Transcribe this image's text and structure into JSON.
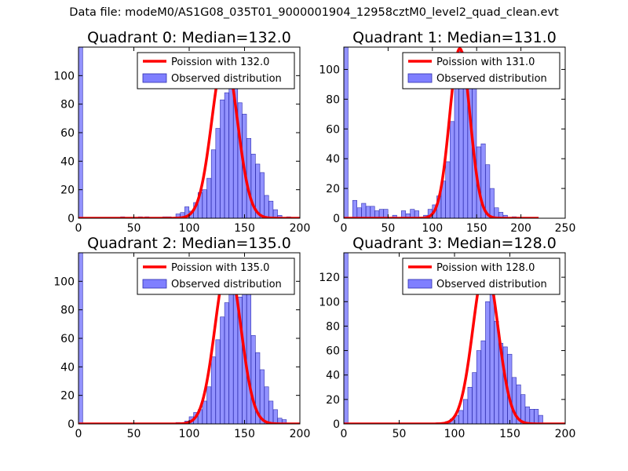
{
  "figure_title": "Data file: modeM0/AS1G08_035T01_9000001904_12958cztM0_level2_quad_clean.evt",
  "colors": {
    "observed_fill": "#7f7fff",
    "observed_edge": "#2f2fb0",
    "poisson_line": "#ff0000",
    "background": "#ffffff"
  },
  "chart_data": [
    {
      "type": "bar",
      "title": "Quadrant 0: Median=132.0",
      "xlim": [
        0,
        200
      ],
      "ylim": [
        0,
        120
      ],
      "xticks": [
        0,
        50,
        100,
        150,
        200
      ],
      "yticks": [
        0,
        20,
        40,
        60,
        80,
        100
      ],
      "legend": {
        "placement": "top-right",
        "labels": [
          "Poission with 132.0",
          "Observed distribution"
        ]
      },
      "bar_width": 3.8,
      "bars": [
        [
          0,
          120
        ],
        [
          38,
          1
        ],
        [
          54,
          1
        ],
        [
          60,
          1
        ],
        [
          76,
          1
        ],
        [
          80,
          1
        ],
        [
          88,
          3
        ],
        [
          92,
          4
        ],
        [
          96,
          8
        ],
        [
          100,
          5
        ],
        [
          104,
          11
        ],
        [
          108,
          18
        ],
        [
          112,
          20
        ],
        [
          116,
          28
        ],
        [
          120,
          48
        ],
        [
          124,
          63
        ],
        [
          128,
          83
        ],
        [
          132,
          88
        ],
        [
          136,
          105
        ],
        [
          140,
          91
        ],
        [
          144,
          81
        ],
        [
          148,
          73
        ],
        [
          152,
          56
        ],
        [
          156,
          45
        ],
        [
          160,
          38
        ],
        [
          164,
          32
        ],
        [
          168,
          16
        ],
        [
          172,
          12
        ],
        [
          176,
          6
        ],
        [
          180,
          2
        ],
        [
          188,
          1
        ]
      ],
      "poisson_mean": 132.0,
      "poisson_peak": 114,
      "poisson_range": [
        0,
        200
      ]
    },
    {
      "type": "bar",
      "title": "Quadrant 1: Median=131.0",
      "xlim": [
        0,
        250
      ],
      "ylim": [
        0,
        115
      ],
      "xticks": [
        0,
        50,
        100,
        150,
        200,
        250
      ],
      "yticks": [
        0,
        20,
        40,
        60,
        80,
        100
      ],
      "legend": {
        "placement": "top-right",
        "labels": [
          "Poission with 131.0",
          "Observed distribution"
        ]
      },
      "bar_width": 4.8,
      "bars": [
        [
          0,
          115
        ],
        [
          10,
          12
        ],
        [
          15,
          7
        ],
        [
          20,
          10
        ],
        [
          25,
          8
        ],
        [
          30,
          8
        ],
        [
          35,
          5
        ],
        [
          40,
          6
        ],
        [
          45,
          6
        ],
        [
          55,
          2
        ],
        [
          65,
          5
        ],
        [
          70,
          3
        ],
        [
          75,
          6
        ],
        [
          80,
          5
        ],
        [
          90,
          2
        ],
        [
          95,
          6
        ],
        [
          100,
          9
        ],
        [
          105,
          15
        ],
        [
          110,
          25
        ],
        [
          115,
          38
        ],
        [
          120,
          65
        ],
        [
          125,
          90
        ],
        [
          130,
          112
        ],
        [
          135,
          108
        ],
        [
          140,
          100
        ],
        [
          145,
          90
        ],
        [
          150,
          48
        ],
        [
          155,
          50
        ],
        [
          160,
          36
        ],
        [
          165,
          20
        ],
        [
          170,
          7
        ],
        [
          175,
          4
        ],
        [
          180,
          2
        ],
        [
          190,
          1
        ]
      ],
      "poisson_mean": 131.0,
      "poisson_peak": 114,
      "poisson_range": [
        0,
        220
      ]
    },
    {
      "type": "bar",
      "title": "Quadrant 2: Median=135.0",
      "xlim": [
        0,
        200
      ],
      "ylim": [
        0,
        120
      ],
      "xticks": [
        0,
        50,
        100,
        150,
        200
      ],
      "yticks": [
        0,
        20,
        40,
        60,
        80,
        100
      ],
      "legend": {
        "placement": "top-right",
        "labels": [
          "Poission with 135.0",
          "Observed distribution"
        ]
      },
      "bar_width": 3.8,
      "bars": [
        [
          0,
          120
        ],
        [
          88,
          1
        ],
        [
          96,
          2
        ],
        [
          100,
          5
        ],
        [
          104,
          8
        ],
        [
          108,
          10
        ],
        [
          112,
          16
        ],
        [
          116,
          26
        ],
        [
          120,
          47
        ],
        [
          124,
          59
        ],
        [
          128,
          75
        ],
        [
          132,
          85
        ],
        [
          136,
          101
        ],
        [
          140,
          98
        ],
        [
          144,
          89
        ],
        [
          148,
          102
        ],
        [
          152,
          93
        ],
        [
          156,
          62
        ],
        [
          160,
          50
        ],
        [
          164,
          38
        ],
        [
          168,
          26
        ],
        [
          172,
          16
        ],
        [
          176,
          10
        ],
        [
          180,
          4
        ],
        [
          184,
          3
        ]
      ],
      "poisson_mean": 135.0,
      "poisson_peak": 113,
      "poisson_range": [
        0,
        200
      ]
    },
    {
      "type": "bar",
      "title": "Quadrant 3: Median=128.0",
      "xlim": [
        0,
        200
      ],
      "ylim": [
        0,
        140
      ],
      "xticks": [
        0,
        50,
        100,
        150,
        200
      ],
      "yticks": [
        0,
        20,
        40,
        60,
        80,
        100,
        120
      ],
      "legend": {
        "placement": "top-right",
        "labels": [
          "Poission with 128.0",
          "Observed distribution"
        ]
      },
      "bar_width": 3.8,
      "bars": [
        [
          0,
          140
        ],
        [
          84,
          1
        ],
        [
          92,
          2
        ],
        [
          96,
          4
        ],
        [
          100,
          7
        ],
        [
          104,
          11
        ],
        [
          108,
          20
        ],
        [
          112,
          30
        ],
        [
          116,
          42
        ],
        [
          120,
          60
        ],
        [
          124,
          68
        ],
        [
          128,
          100
        ],
        [
          132,
          128
        ],
        [
          136,
          84
        ],
        [
          140,
          66
        ],
        [
          144,
          63
        ],
        [
          148,
          57
        ],
        [
          152,
          38
        ],
        [
          156,
          32
        ],
        [
          160,
          24
        ],
        [
          164,
          14
        ],
        [
          168,
          12
        ],
        [
          172,
          12
        ],
        [
          176,
          7
        ]
      ],
      "poisson_mean": 128.0,
      "poisson_peak": 130,
      "poisson_range": [
        0,
        200
      ]
    }
  ]
}
